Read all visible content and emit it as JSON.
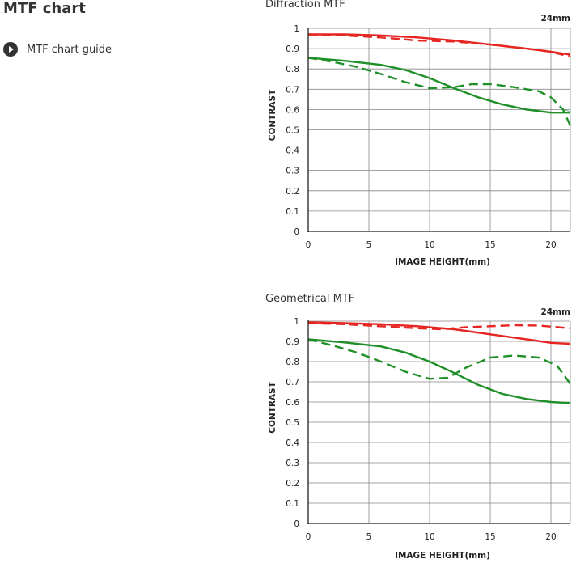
{
  "page": {
    "title": "MTF chart",
    "guide_link": "MTF chart guide"
  },
  "colors": {
    "sagittal_high": "#e52521",
    "green": "#1f8f28",
    "grid": "#888888",
    "axis": "#222222"
  },
  "chart_data": [
    {
      "type": "line",
      "title": "Diffraction MTF",
      "annotation": "24mm",
      "xlabel": "IMAGE HEIGHT(mm)",
      "ylabel": "CONTRAST",
      "xlim": [
        0,
        21.6
      ],
      "ylim": [
        0,
        1
      ],
      "x_ticks": [
        0,
        5,
        10,
        15,
        20
      ],
      "y_ticks": [
        0,
        0.1,
        0.2,
        0.3,
        0.4,
        0.5,
        0.6,
        0.7,
        0.8,
        0.9,
        1
      ],
      "y_tick_labels": [
        "0",
        "0.1",
        "0.2",
        "0.3",
        "0.4",
        "0.5",
        "0.6",
        "0.7",
        "0.8",
        "0.9",
        "1"
      ],
      "grid": true,
      "series": [
        {
          "color": "#e52521",
          "dash": false,
          "light": false,
          "points": [
            [
              0,
              0.97
            ],
            [
              3,
              0.97
            ],
            [
              6,
              0.965
            ],
            [
              9,
              0.955
            ],
            [
              12,
              0.94
            ],
            [
              15,
              0.92
            ],
            [
              18,
              0.9
            ],
            [
              20,
              0.885
            ],
            [
              21.6,
              0.87
            ]
          ]
        },
        {
          "color": "#e52521",
          "dash": true,
          "light": false,
          "points": [
            [
              0,
              0.97
            ],
            [
              3,
              0.965
            ],
            [
              6,
              0.955
            ],
            [
              9,
              0.94
            ],
            [
              12,
              0.935
            ],
            [
              15,
              0.92
            ],
            [
              18,
              0.9
            ],
            [
              20,
              0.885
            ],
            [
              21.6,
              0.86
            ]
          ]
        },
        {
          "color": "#1f8f28",
          "dash": false,
          "light": false,
          "points": [
            [
              0,
              0.855
            ],
            [
              3,
              0.84
            ],
            [
              6,
              0.82
            ],
            [
              8,
              0.795
            ],
            [
              10,
              0.755
            ],
            [
              12,
              0.705
            ],
            [
              14,
              0.66
            ],
            [
              16,
              0.625
            ],
            [
              18,
              0.6
            ],
            [
              20,
              0.585
            ],
            [
              21.6,
              0.585
            ]
          ]
        },
        {
          "color": "#1f8f28",
          "dash": true,
          "light": false,
          "points": [
            [
              0,
              0.855
            ],
            [
              2,
              0.835
            ],
            [
              4,
              0.81
            ],
            [
              6,
              0.775
            ],
            [
              8,
              0.735
            ],
            [
              10,
              0.705
            ],
            [
              12,
              0.71
            ],
            [
              13.5,
              0.725
            ],
            [
              15,
              0.725
            ],
            [
              17,
              0.71
            ],
            [
              19,
              0.69
            ],
            [
              20,
              0.66
            ],
            [
              21,
              0.6
            ],
            [
              21.6,
              0.52
            ]
          ]
        },
        {
          "color": "#1f8f28",
          "dash": false,
          "light": true,
          "points": [
            [
              21,
              0.6
            ],
            [
              21.6,
              0.59
            ]
          ]
        }
      ]
    },
    {
      "type": "line",
      "title": "Geometrical MTF",
      "annotation": "24mm",
      "xlabel": "IMAGE HEIGHT(mm)",
      "ylabel": "CONTRAST",
      "xlim": [
        0,
        21.6
      ],
      "ylim": [
        0,
        1
      ],
      "x_ticks": [
        0,
        5,
        10,
        15,
        20
      ],
      "y_ticks": [
        0,
        0.1,
        0.2,
        0.3,
        0.4,
        0.5,
        0.6,
        0.7,
        0.8,
        0.9,
        1
      ],
      "y_tick_labels": [
        "0",
        "0.1",
        "0.2",
        "0.3",
        "0.4",
        "0.5",
        "0.6",
        "0.7",
        "0.8",
        "0.9",
        "1"
      ],
      "grid": true,
      "series": [
        {
          "color": "#e52521",
          "dash": false,
          "light": false,
          "points": [
            [
              0,
              0.995
            ],
            [
              3,
              0.99
            ],
            [
              6,
              0.985
            ],
            [
              9,
              0.975
            ],
            [
              12,
              0.96
            ],
            [
              15,
              0.935
            ],
            [
              18,
              0.91
            ],
            [
              20,
              0.893
            ],
            [
              21.6,
              0.888
            ]
          ]
        },
        {
          "color": "#e52521",
          "dash": true,
          "light": false,
          "points": [
            [
              0,
              0.99
            ],
            [
              3,
              0.985
            ],
            [
              6,
              0.975
            ],
            [
              9,
              0.965
            ],
            [
              11,
              0.96
            ],
            [
              13,
              0.97
            ],
            [
              15,
              0.975
            ],
            [
              17,
              0.98
            ],
            [
              19,
              0.978
            ],
            [
              21.6,
              0.965
            ]
          ]
        },
        {
          "color": "#1f8f28",
          "dash": false,
          "light": false,
          "points": [
            [
              0,
              0.91
            ],
            [
              3,
              0.895
            ],
            [
              6,
              0.875
            ],
            [
              8,
              0.845
            ],
            [
              10,
              0.8
            ],
            [
              12,
              0.745
            ],
            [
              14,
              0.685
            ],
            [
              16,
              0.64
            ],
            [
              18,
              0.615
            ],
            [
              20,
              0.6
            ],
            [
              21.6,
              0.595
            ]
          ]
        },
        {
          "color": "#1f8f28",
          "dash": true,
          "light": false,
          "points": [
            [
              0,
              0.91
            ],
            [
              2,
              0.88
            ],
            [
              4,
              0.845
            ],
            [
              6,
              0.8
            ],
            [
              8,
              0.75
            ],
            [
              10,
              0.715
            ],
            [
              11.5,
              0.72
            ],
            [
              13,
              0.77
            ],
            [
              15,
              0.82
            ],
            [
              17,
              0.83
            ],
            [
              19,
              0.82
            ],
            [
              20.5,
              0.78
            ],
            [
              21.6,
              0.69
            ]
          ]
        }
      ]
    }
  ]
}
